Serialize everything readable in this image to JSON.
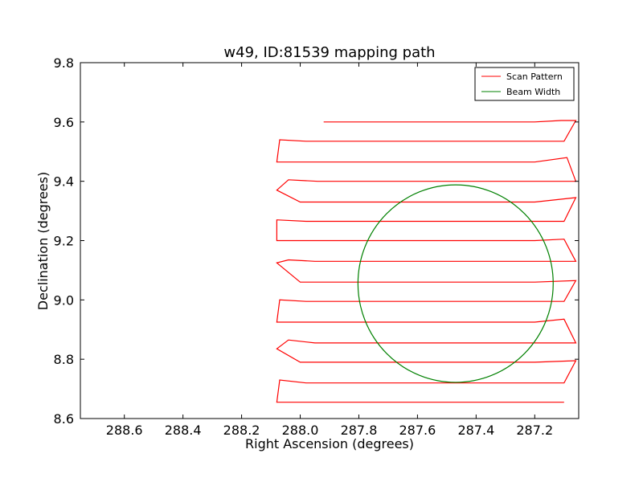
{
  "chart_data": {
    "type": "line",
    "title": "w49, ID:81539 mapping path",
    "xlabel": "Right Ascension (degrees)",
    "ylabel": "Declination (degrees)",
    "xlim": [
      288.75,
      287.05
    ],
    "ylim": [
      8.6,
      9.8
    ],
    "x_inverted": true,
    "xticks": [
      288.6,
      288.4,
      288.2,
      288.0,
      287.8,
      287.6,
      287.4,
      287.2
    ],
    "xtick_labels": [
      "288.6",
      "288.4",
      "288.2",
      "288.0",
      "287.8",
      "287.6",
      "287.4",
      "287.2"
    ],
    "yticks": [
      8.6,
      8.8,
      9.0,
      9.2,
      9.4,
      9.6,
      9.8
    ],
    "ytick_labels": [
      "8.6",
      "8.8",
      "9.0",
      "9.2",
      "9.4",
      "9.6",
      "9.8"
    ],
    "grid": false,
    "legend_position": "top-right",
    "series": [
      {
        "name": "Scan Pattern",
        "color": "#ff0000",
        "x": [
          287.92,
          287.6,
          287.2,
          287.11,
          287.06,
          287.1,
          287.2,
          287.6,
          287.98,
          288.07,
          288.08,
          288.07,
          287.9,
          287.6,
          287.2,
          287.09,
          287.06,
          287.1,
          287.2,
          287.6,
          287.94,
          288.04,
          288.08,
          288.0,
          287.6,
          287.2,
          287.06,
          287.1,
          287.2,
          287.6,
          287.98,
          288.08,
          288.08,
          288.07,
          287.9,
          287.6,
          287.2,
          287.1,
          287.06,
          287.1,
          287.2,
          287.6,
          287.95,
          288.04,
          288.08,
          288.0,
          287.6,
          287.2,
          287.06,
          287.1,
          287.2,
          287.6,
          287.98,
          288.07,
          288.08,
          288.07,
          287.9,
          287.6,
          287.2,
          287.1,
          287.06,
          287.1,
          287.2,
          287.6,
          287.95,
          288.04,
          288.08,
          288.0,
          287.6,
          287.2,
          287.06,
          287.1,
          287.2,
          287.6,
          287.98,
          288.07,
          288.08,
          288.07,
          287.9,
          287.6,
          287.1
        ],
        "y": [
          9.6,
          9.6,
          9.6,
          9.605,
          9.605,
          9.535,
          9.535,
          9.535,
          9.535,
          9.54,
          9.465,
          9.465,
          9.465,
          9.465,
          9.465,
          9.48,
          9.4,
          9.4,
          9.4,
          9.4,
          9.4,
          9.405,
          9.37,
          9.33,
          9.33,
          9.33,
          9.345,
          9.265,
          9.265,
          9.265,
          9.265,
          9.27,
          9.2,
          9.2,
          9.2,
          9.2,
          9.2,
          9.205,
          9.13,
          9.13,
          9.13,
          9.13,
          9.13,
          9.135,
          9.125,
          9.06,
          9.06,
          9.06,
          9.065,
          8.995,
          8.995,
          8.995,
          8.995,
          9.0,
          8.925,
          8.925,
          8.925,
          8.925,
          8.925,
          8.935,
          8.855,
          8.855,
          8.855,
          8.855,
          8.855,
          8.865,
          8.835,
          8.79,
          8.79,
          8.79,
          8.795,
          8.72,
          8.72,
          8.72,
          8.72,
          8.73,
          8.655,
          8.655,
          8.655,
          8.655,
          8.655
        ]
      },
      {
        "name": "Beam Width",
        "color": "#008000",
        "shape": "circle",
        "center": [
          287.47,
          9.055
        ],
        "radius_deg": 0.333
      }
    ]
  }
}
